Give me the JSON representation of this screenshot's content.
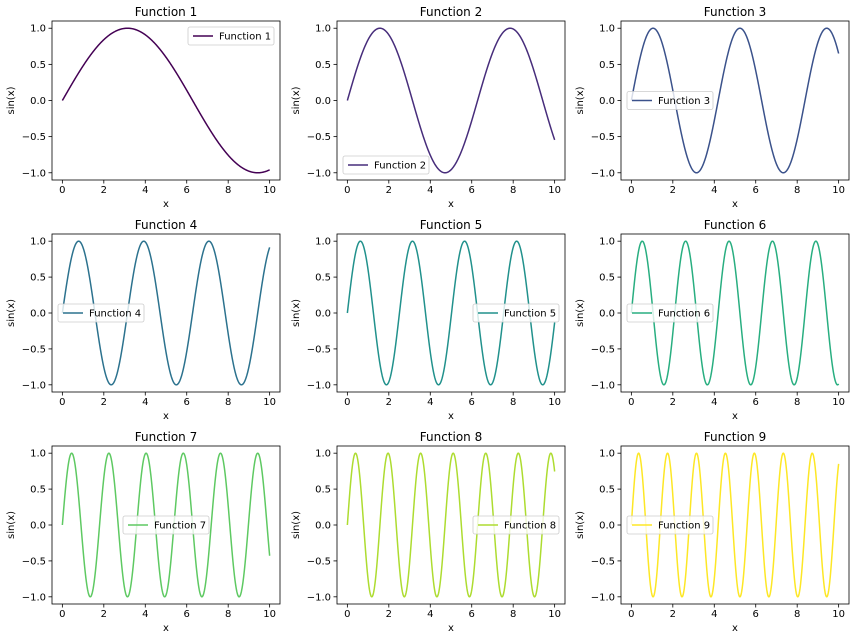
{
  "chart_data": [
    {
      "type": "line",
      "title": "Function 1",
      "xlabel": "x",
      "ylabel": "sin(x)",
      "xlim": [
        -0.5,
        10.5
      ],
      "ylim": [
        -1.1,
        1.1
      ],
      "xticks": [
        0,
        2,
        4,
        6,
        8,
        10
      ],
      "yticks": [
        -1.0,
        -0.5,
        0.0,
        0.5,
        1.0
      ],
      "legend_loc": "upper right",
      "series": [
        {
          "name": "Function 1",
          "expression": "sin(0.5*x)",
          "frequency": 0.5,
          "x_range": [
            0,
            10
          ],
          "color": "#440154"
        }
      ]
    },
    {
      "type": "line",
      "title": "Function 2",
      "xlabel": "x",
      "ylabel": "sin(x)",
      "xlim": [
        -0.5,
        10.5
      ],
      "ylim": [
        -1.1,
        1.1
      ],
      "xticks": [
        0,
        2,
        4,
        6,
        8,
        10
      ],
      "yticks": [
        -1.0,
        -0.5,
        0.0,
        0.5,
        1.0
      ],
      "legend_loc": "lower left",
      "series": [
        {
          "name": "Function 2",
          "expression": "sin(1.0*x)",
          "frequency": 1.0,
          "x_range": [
            0,
            10
          ],
          "color": "#472d7b"
        }
      ]
    },
    {
      "type": "line",
      "title": "Function 3",
      "xlabel": "x",
      "ylabel": "sin(x)",
      "xlim": [
        -0.5,
        10.5
      ],
      "ylim": [
        -1.1,
        1.1
      ],
      "xticks": [
        0,
        2,
        4,
        6,
        8,
        10
      ],
      "yticks": [
        -1.0,
        -0.5,
        0.0,
        0.5,
        1.0
      ],
      "legend_loc": "center left",
      "series": [
        {
          "name": "Function 3",
          "expression": "sin(1.5*x)",
          "frequency": 1.5,
          "x_range": [
            0,
            10
          ],
          "color": "#3b528b"
        }
      ]
    },
    {
      "type": "line",
      "title": "Function 4",
      "xlabel": "x",
      "ylabel": "sin(x)",
      "xlim": [
        -0.5,
        10.5
      ],
      "ylim": [
        -1.1,
        1.1
      ],
      "xticks": [
        0,
        2,
        4,
        6,
        8,
        10
      ],
      "yticks": [
        -1.0,
        -0.5,
        0.0,
        0.5,
        1.0
      ],
      "legend_loc": "center left",
      "series": [
        {
          "name": "Function 4",
          "expression": "sin(2.0*x)",
          "frequency": 2.0,
          "x_range": [
            0,
            10
          ],
          "color": "#2c728e"
        }
      ]
    },
    {
      "type": "line",
      "title": "Function 5",
      "xlabel": "x",
      "ylabel": "sin(x)",
      "xlim": [
        -0.5,
        10.5
      ],
      "ylim": [
        -1.1,
        1.1
      ],
      "xticks": [
        0,
        2,
        4,
        6,
        8,
        10
      ],
      "yticks": [
        -1.0,
        -0.5,
        0.0,
        0.5,
        1.0
      ],
      "legend_loc": "center right",
      "series": [
        {
          "name": "Function 5",
          "expression": "sin(2.5*x)",
          "frequency": 2.5,
          "x_range": [
            0,
            10
          ],
          "color": "#21918c"
        }
      ]
    },
    {
      "type": "line",
      "title": "Function 6",
      "xlabel": "x",
      "ylabel": "sin(x)",
      "xlim": [
        -0.5,
        10.5
      ],
      "ylim": [
        -1.1,
        1.1
      ],
      "xticks": [
        0,
        2,
        4,
        6,
        8,
        10
      ],
      "yticks": [
        -1.0,
        -0.5,
        0.0,
        0.5,
        1.0
      ],
      "legend_loc": "center left",
      "series": [
        {
          "name": "Function 6",
          "expression": "sin(3.0*x)",
          "frequency": 3.0,
          "x_range": [
            0,
            10
          ],
          "color": "#28ae80"
        }
      ]
    },
    {
      "type": "line",
      "title": "Function 7",
      "xlabel": "x",
      "ylabel": "sin(x)",
      "xlim": [
        -0.5,
        10.5
      ],
      "ylim": [
        -1.1,
        1.1
      ],
      "xticks": [
        0,
        2,
        4,
        6,
        8,
        10
      ],
      "yticks": [
        -1.0,
        -0.5,
        0.0,
        0.5,
        1.0
      ],
      "legend_loc": "center",
      "series": [
        {
          "name": "Function 7",
          "expression": "sin(3.5*x)",
          "frequency": 3.5,
          "x_range": [
            0,
            10
          ],
          "color": "#5ec962"
        }
      ]
    },
    {
      "type": "line",
      "title": "Function 8",
      "xlabel": "x",
      "ylabel": "sin(x)",
      "xlim": [
        -0.5,
        10.5
      ],
      "ylim": [
        -1.1,
        1.1
      ],
      "xticks": [
        0,
        2,
        4,
        6,
        8,
        10
      ],
      "yticks": [
        -1.0,
        -0.5,
        0.0,
        0.5,
        1.0
      ],
      "legend_loc": "center right",
      "series": [
        {
          "name": "Function 8",
          "expression": "sin(4.0*x)",
          "frequency": 4.0,
          "x_range": [
            0,
            10
          ],
          "color": "#addc30"
        }
      ]
    },
    {
      "type": "line",
      "title": "Function 9",
      "xlabel": "x",
      "ylabel": "sin(x)",
      "xlim": [
        -0.5,
        10.5
      ],
      "ylim": [
        -1.1,
        1.1
      ],
      "xticks": [
        0,
        2,
        4,
        6,
        8,
        10
      ],
      "yticks": [
        -1.0,
        -0.5,
        0.0,
        0.5,
        1.0
      ],
      "legend_loc": "center left",
      "series": [
        {
          "name": "Function 9",
          "expression": "sin(4.5*x)",
          "frequency": 4.5,
          "x_range": [
            0,
            10
          ],
          "color": "#fde725"
        }
      ]
    }
  ]
}
